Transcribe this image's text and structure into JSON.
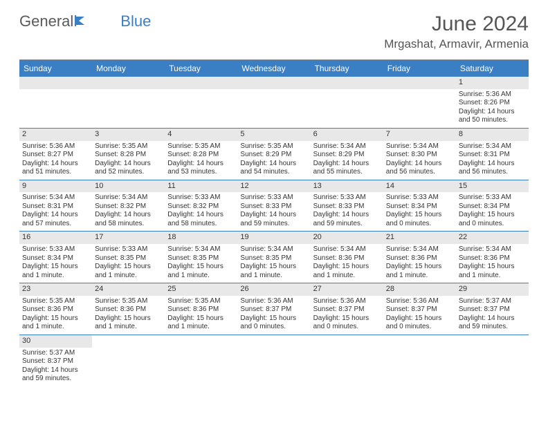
{
  "brand": {
    "part1": "General",
    "part2": "Blue"
  },
  "title": "June 2024",
  "location": "Mrgashat, Armavir, Armenia",
  "colors": {
    "header_bg": "#3a7fc4",
    "header_text": "#ffffff",
    "daynum_bg": "#e8e8e8",
    "border": "#3a7fc4",
    "title_color": "#555555",
    "body_text": "#333333"
  },
  "dayHeaders": [
    "Sunday",
    "Monday",
    "Tuesday",
    "Wednesday",
    "Thursday",
    "Friday",
    "Saturday"
  ],
  "weeks": [
    [
      null,
      null,
      null,
      null,
      null,
      null,
      {
        "n": "1",
        "sr": "Sunrise: 5:36 AM",
        "ss": "Sunset: 8:26 PM",
        "dl1": "Daylight: 14 hours",
        "dl2": "and 50 minutes."
      }
    ],
    [
      {
        "n": "2",
        "sr": "Sunrise: 5:36 AM",
        "ss": "Sunset: 8:27 PM",
        "dl1": "Daylight: 14 hours",
        "dl2": "and 51 minutes."
      },
      {
        "n": "3",
        "sr": "Sunrise: 5:35 AM",
        "ss": "Sunset: 8:28 PM",
        "dl1": "Daylight: 14 hours",
        "dl2": "and 52 minutes."
      },
      {
        "n": "4",
        "sr": "Sunrise: 5:35 AM",
        "ss": "Sunset: 8:28 PM",
        "dl1": "Daylight: 14 hours",
        "dl2": "and 53 minutes."
      },
      {
        "n": "5",
        "sr": "Sunrise: 5:35 AM",
        "ss": "Sunset: 8:29 PM",
        "dl1": "Daylight: 14 hours",
        "dl2": "and 54 minutes."
      },
      {
        "n": "6",
        "sr": "Sunrise: 5:34 AM",
        "ss": "Sunset: 8:29 PM",
        "dl1": "Daylight: 14 hours",
        "dl2": "and 55 minutes."
      },
      {
        "n": "7",
        "sr": "Sunrise: 5:34 AM",
        "ss": "Sunset: 8:30 PM",
        "dl1": "Daylight: 14 hours",
        "dl2": "and 56 minutes."
      },
      {
        "n": "8",
        "sr": "Sunrise: 5:34 AM",
        "ss": "Sunset: 8:31 PM",
        "dl1": "Daylight: 14 hours",
        "dl2": "and 56 minutes."
      }
    ],
    [
      {
        "n": "9",
        "sr": "Sunrise: 5:34 AM",
        "ss": "Sunset: 8:31 PM",
        "dl1": "Daylight: 14 hours",
        "dl2": "and 57 minutes."
      },
      {
        "n": "10",
        "sr": "Sunrise: 5:34 AM",
        "ss": "Sunset: 8:32 PM",
        "dl1": "Daylight: 14 hours",
        "dl2": "and 58 minutes."
      },
      {
        "n": "11",
        "sr": "Sunrise: 5:33 AM",
        "ss": "Sunset: 8:32 PM",
        "dl1": "Daylight: 14 hours",
        "dl2": "and 58 minutes."
      },
      {
        "n": "12",
        "sr": "Sunrise: 5:33 AM",
        "ss": "Sunset: 8:33 PM",
        "dl1": "Daylight: 14 hours",
        "dl2": "and 59 minutes."
      },
      {
        "n": "13",
        "sr": "Sunrise: 5:33 AM",
        "ss": "Sunset: 8:33 PM",
        "dl1": "Daylight: 14 hours",
        "dl2": "and 59 minutes."
      },
      {
        "n": "14",
        "sr": "Sunrise: 5:33 AM",
        "ss": "Sunset: 8:34 PM",
        "dl1": "Daylight: 15 hours",
        "dl2": "and 0 minutes."
      },
      {
        "n": "15",
        "sr": "Sunrise: 5:33 AM",
        "ss": "Sunset: 8:34 PM",
        "dl1": "Daylight: 15 hours",
        "dl2": "and 0 minutes."
      }
    ],
    [
      {
        "n": "16",
        "sr": "Sunrise: 5:33 AM",
        "ss": "Sunset: 8:34 PM",
        "dl1": "Daylight: 15 hours",
        "dl2": "and 1 minute."
      },
      {
        "n": "17",
        "sr": "Sunrise: 5:33 AM",
        "ss": "Sunset: 8:35 PM",
        "dl1": "Daylight: 15 hours",
        "dl2": "and 1 minute."
      },
      {
        "n": "18",
        "sr": "Sunrise: 5:34 AM",
        "ss": "Sunset: 8:35 PM",
        "dl1": "Daylight: 15 hours",
        "dl2": "and 1 minute."
      },
      {
        "n": "19",
        "sr": "Sunrise: 5:34 AM",
        "ss": "Sunset: 8:35 PM",
        "dl1": "Daylight: 15 hours",
        "dl2": "and 1 minute."
      },
      {
        "n": "20",
        "sr": "Sunrise: 5:34 AM",
        "ss": "Sunset: 8:36 PM",
        "dl1": "Daylight: 15 hours",
        "dl2": "and 1 minute."
      },
      {
        "n": "21",
        "sr": "Sunrise: 5:34 AM",
        "ss": "Sunset: 8:36 PM",
        "dl1": "Daylight: 15 hours",
        "dl2": "and 1 minute."
      },
      {
        "n": "22",
        "sr": "Sunrise: 5:34 AM",
        "ss": "Sunset: 8:36 PM",
        "dl1": "Daylight: 15 hours",
        "dl2": "and 1 minute."
      }
    ],
    [
      {
        "n": "23",
        "sr": "Sunrise: 5:35 AM",
        "ss": "Sunset: 8:36 PM",
        "dl1": "Daylight: 15 hours",
        "dl2": "and 1 minute."
      },
      {
        "n": "24",
        "sr": "Sunrise: 5:35 AM",
        "ss": "Sunset: 8:36 PM",
        "dl1": "Daylight: 15 hours",
        "dl2": "and 1 minute."
      },
      {
        "n": "25",
        "sr": "Sunrise: 5:35 AM",
        "ss": "Sunset: 8:36 PM",
        "dl1": "Daylight: 15 hours",
        "dl2": "and 1 minute."
      },
      {
        "n": "26",
        "sr": "Sunrise: 5:36 AM",
        "ss": "Sunset: 8:37 PM",
        "dl1": "Daylight: 15 hours",
        "dl2": "and 0 minutes."
      },
      {
        "n": "27",
        "sr": "Sunrise: 5:36 AM",
        "ss": "Sunset: 8:37 PM",
        "dl1": "Daylight: 15 hours",
        "dl2": "and 0 minutes."
      },
      {
        "n": "28",
        "sr": "Sunrise: 5:36 AM",
        "ss": "Sunset: 8:37 PM",
        "dl1": "Daylight: 15 hours",
        "dl2": "and 0 minutes."
      },
      {
        "n": "29",
        "sr": "Sunrise: 5:37 AM",
        "ss": "Sunset: 8:37 PM",
        "dl1": "Daylight: 14 hours",
        "dl2": "and 59 minutes."
      }
    ],
    [
      {
        "n": "30",
        "sr": "Sunrise: 5:37 AM",
        "ss": "Sunset: 8:37 PM",
        "dl1": "Daylight: 14 hours",
        "dl2": "and 59 minutes."
      },
      null,
      null,
      null,
      null,
      null,
      null
    ]
  ]
}
